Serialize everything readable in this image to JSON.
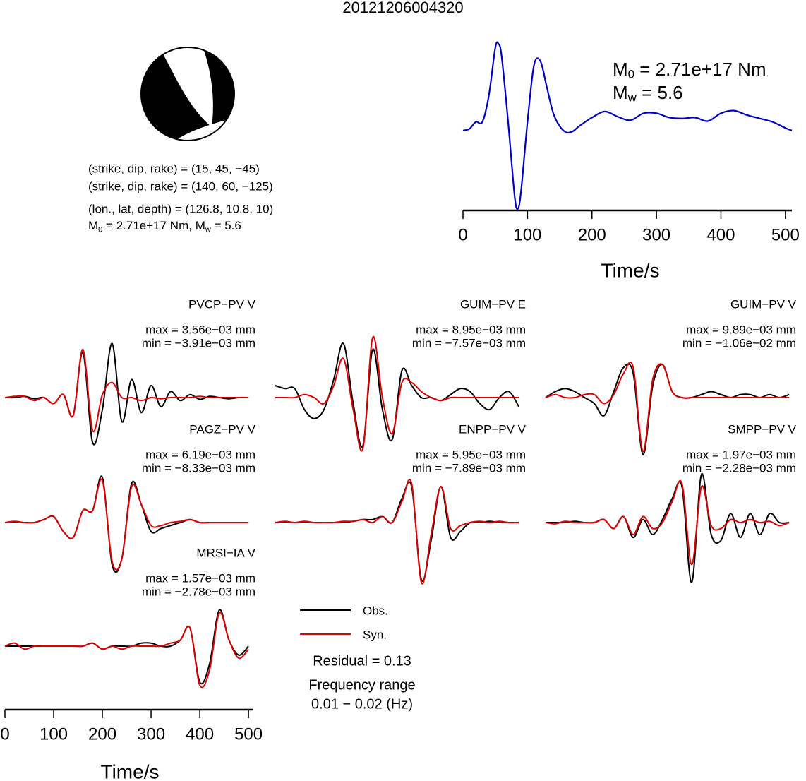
{
  "title": "20121206004320",
  "focal_mechanism": {
    "planes": [
      "(strike, dip, rake) = (15, 45, −45)",
      "(strike, dip, rake) = (140, 60, −125)"
    ],
    "location": "(lon., lat, depth) = (126.8, 10.8, 10)",
    "moment": [
      "M",
      "0",
      " = 2.71e+17 Nm, M",
      "w",
      " = 5.6"
    ]
  },
  "chart_data": [
    {
      "type": "line",
      "x": [
        0,
        10,
        20,
        30,
        40,
        50,
        55,
        60,
        70,
        80,
        85,
        90,
        100,
        110,
        120,
        130,
        140,
        150,
        160,
        170,
        180,
        200,
        220,
        240,
        260,
        280,
        300,
        320,
        340,
        360,
        380,
        400,
        420,
        440,
        460,
        480,
        500,
        510
      ],
      "series": [
        {
          "color": "#0000cc",
          "values": [
            0,
            0.02,
            0.1,
            0.1,
            0.4,
            0.95,
            1.0,
            0.85,
            0.1,
            -0.75,
            -0.9,
            -0.7,
            0.1,
            0.75,
            0.8,
            0.5,
            0.2,
            0.05,
            -0.02,
            -0.01,
            0.05,
            0.15,
            0.22,
            0.16,
            0.12,
            0.2,
            0.2,
            0.15,
            0.14,
            0.15,
            0.11,
            0.2,
            0.23,
            0.18,
            0.14,
            0.1,
            0.03,
            0.0
          ]
        }
      ],
      "xlim": [
        0,
        510
      ],
      "ylim": [
        -0.92,
        1.0
      ],
      "xticks": [
        0,
        100,
        200,
        300,
        400,
        500
      ],
      "xlabel": "Time/s",
      "annotations": [
        [
          "M",
          "0",
          " = 2.71e+17 Nm"
        ],
        [
          "M",
          "w",
          " = 5.6"
        ]
      ]
    },
    {
      "type": "waveforms",
      "x": [
        0,
        20,
        40,
        60,
        80,
        100,
        120,
        140,
        160,
        180,
        200,
        220,
        240,
        260,
        280,
        300,
        320,
        340,
        360,
        380,
        400,
        420,
        440,
        460,
        480,
        500
      ],
      "xlim": [
        0,
        510
      ],
      "ylim": [
        -1.1,
        1.1
      ],
      "xticks": [
        0,
        100,
        200,
        300,
        400,
        500
      ],
      "xlabel": "Time/s",
      "legend": [
        {
          "name": "Obs.",
          "color": "#000000"
        },
        {
          "name": "Syn.",
          "color": "#e00000"
        }
      ],
      "panels": [
        {
          "label": "PVCP−PV V",
          "max": "max = 3.56e−03 mm",
          "min": "min = −3.91e−03 mm",
          "series": [
            {
              "values": [
                0,
                0,
                0.02,
                -0.02,
                0,
                -0.1,
                0.05,
                -0.3,
                0.75,
                -0.75,
                -0.2,
                0.9,
                -0.4,
                0.3,
                -0.25,
                0.2,
                -0.15,
                0.1,
                -0.05,
                0.05,
                -0.03,
                0.02,
                0,
                -0.02,
                0,
                0
              ]
            },
            {
              "values": [
                0,
                0.02,
                0.02,
                -0.05,
                0,
                -0.1,
                0.05,
                -0.3,
                0.8,
                -0.55,
                0.05,
                0.25,
                0,
                0,
                -0.05,
                0,
                -0.02,
                0,
                0,
                0,
                0.02,
                0,
                0,
                0,
                0,
                0
              ]
            }
          ]
        },
        {
          "label": "GUIM−PV E",
          "max": "max = 8.95e−03 mm",
          "min": "min = −7.57e−03 mm",
          "series": [
            {
              "values": [
                0.2,
                0.15,
                0.15,
                -0.2,
                -0.35,
                -0.2,
                0.3,
                0.9,
                -0.1,
                -0.8,
                0.8,
                -0.2,
                -0.7,
                0.45,
                0.2,
                0,
                0,
                -0.05,
                0.05,
                0.15,
                0.1,
                -0.1,
                -0.2,
                0,
                0.1,
                -0.15
              ]
            },
            {
              "values": [
                0,
                0,
                0,
                0.05,
                0,
                -0.1,
                0.2,
                0.65,
                -0.2,
                -0.85,
                1.0,
                0,
                -0.6,
                0.25,
                0.25,
                0.1,
                0,
                -0.05,
                0,
                0,
                0,
                0,
                0,
                0,
                0,
                0
              ]
            }
          ]
        },
        {
          "label": "GUIM−PV V",
          "max": "max = 9.89e−03 mm",
          "min": "min = −1.06e−02 mm",
          "series": [
            {
              "values": [
                0,
                0.1,
                0.15,
                0.1,
                0,
                -0.1,
                -0.3,
                0.1,
                0.5,
                0.4,
                -0.95,
                0.2,
                0.55,
                0.1,
                0,
                0,
                0.05,
                0.1,
                0.05,
                0,
                0.05,
                0.05,
                0,
                0.05,
                0,
                0.05
              ]
            },
            {
              "values": [
                0,
                0.05,
                0,
                0,
                0.05,
                0.05,
                -0.1,
                0.05,
                0.4,
                0.5,
                -0.9,
                0.3,
                0.55,
                0.1,
                0,
                0,
                0,
                0,
                0,
                0,
                0,
                0,
                0,
                0,
                0,
                0
              ]
            }
          ]
        },
        {
          "label": "PAGZ−PV V",
          "max": "max = 6.19e−03 mm",
          "min": "min = −8.33e−03 mm",
          "series": [
            {
              "values": [
                0,
                0,
                0,
                0,
                0.05,
                0.1,
                -0.15,
                -0.25,
                0.2,
                0.2,
                0.75,
                -0.7,
                -0.6,
                0.65,
                0.3,
                -0.15,
                -0.1,
                -0.05,
                0,
                0.05,
                0,
                0,
                0,
                0,
                0,
                0
              ]
            },
            {
              "values": [
                0,
                0.02,
                0,
                0,
                0.05,
                0.1,
                -0.15,
                -0.25,
                0.2,
                0.2,
                0.7,
                -0.65,
                -0.6,
                0.6,
                0.3,
                -0.05,
                -0.05,
                0,
                0.02,
                0.05,
                0,
                0,
                0,
                0,
                0,
                0
              ]
            }
          ]
        },
        {
          "label": "ENPP−PV V",
          "max": "max = 5.95e−03 mm",
          "min": "min = −7.89e−03 mm",
          "series": [
            {
              "values": [
                0,
                0,
                0,
                0,
                0,
                0,
                0,
                0,
                0.02,
                0.05,
                0.05,
                0.1,
                0,
                0.4,
                0.6,
                -0.95,
                -0.3,
                0.6,
                -0.25,
                -0.15,
                0,
                0,
                0.02,
                0,
                0,
                0
              ]
            },
            {
              "values": [
                0,
                0.02,
                0,
                0.02,
                0,
                0,
                0,
                0.02,
                0.02,
                0.05,
                0,
                0.1,
                0,
                0.35,
                0.65,
                -1.0,
                -0.2,
                0.6,
                -0.1,
                -0.05,
                0,
                0.02,
                0,
                0.02,
                0,
                0
              ]
            }
          ]
        },
        {
          "label": "SMPP−PV V",
          "max": "max = 1.97e−03 mm",
          "min": "min = −2.28e−03 mm",
          "series": [
            {
              "values": [
                0,
                0,
                0,
                0.02,
                0,
                0,
                0.05,
                -0.1,
                0.1,
                -0.25,
                0.05,
                -0.2,
                0.05,
                0.4,
                0.6,
                -1.0,
                0.8,
                -0.2,
                -0.3,
                0.15,
                -0.25,
                0.15,
                -0.2,
                0.15,
                0,
                0
              ]
            },
            {
              "values": [
                0,
                -0.02,
                0.02,
                0,
                0,
                0,
                0.05,
                -0.1,
                0.1,
                -0.2,
                0.1,
                -0.1,
                0,
                0.35,
                0.65,
                -0.7,
                0.6,
                -0.05,
                -0.1,
                0.05,
                0,
                0.05,
                0,
                0.02,
                -0.05,
                0
              ]
            }
          ]
        },
        {
          "label": "MRSI−IA V",
          "max": "max = 1.57e−03 mm",
          "min": "min = −2.78e−03 mm",
          "series": [
            {
              "values": [
                0,
                0,
                0,
                0,
                0,
                0,
                0,
                0,
                0,
                0.05,
                -0.05,
                0,
                0,
                0,
                0.05,
                0.05,
                0,
                0,
                0.1,
                0.3,
                -0.6,
                -0.3,
                0.6,
                0.1,
                -0.15,
                0
              ]
            },
            {
              "values": [
                0,
                0.05,
                -0.05,
                0,
                0,
                0,
                0,
                0,
                0,
                0.05,
                -0.05,
                0,
                -0.05,
                0,
                0,
                0,
                0,
                0.05,
                0.1,
                0.3,
                -0.65,
                -0.4,
                0.55,
                0.1,
                -0.2,
                -0.05
              ]
            }
          ]
        }
      ],
      "residual": "Residual = 0.13",
      "frequency_range": [
        "Frequency range",
        "0.01 − 0.02 (Hz)"
      ]
    }
  ]
}
